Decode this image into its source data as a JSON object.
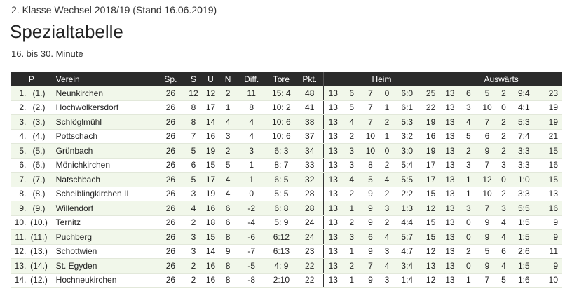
{
  "header": {
    "top_line": "2. Klasse Wechsel 2018/19 (Stand 16.06.2019)",
    "title": "Spezialtabelle",
    "subtitle": "16. bis 30. Minute"
  },
  "columns": {
    "p": "P",
    "verein": "Verein",
    "sp": "Sp.",
    "s": "S",
    "u": "U",
    "n": "N",
    "diff": "Diff.",
    "tore": "Tore",
    "pkt": "Pkt.",
    "heim": "Heim",
    "auswaerts": "Auswärts"
  },
  "rows": [
    {
      "pos": "1.",
      "prev": "(1.)",
      "team": "Neunkirchen",
      "sp": "26",
      "s": "12",
      "u": "12",
      "n": "2",
      "diff": "11",
      "tore": "15: 4",
      "pkt": "48",
      "home": [
        "13",
        "6",
        "7",
        "0",
        "6:0",
        "25"
      ],
      "away": [
        "13",
        "6",
        "5",
        "2",
        "9:4",
        "23"
      ]
    },
    {
      "pos": "2.",
      "prev": "(2.)",
      "team": "Hochwolkersdorf",
      "sp": "26",
      "s": "8",
      "u": "17",
      "n": "1",
      "diff": "8",
      "tore": "10: 2",
      "pkt": "41",
      "home": [
        "13",
        "5",
        "7",
        "1",
        "6:1",
        "22"
      ],
      "away": [
        "13",
        "3",
        "10",
        "0",
        "4:1",
        "19"
      ]
    },
    {
      "pos": "3.",
      "prev": "(3.)",
      "team": "Schlöglmühl",
      "sp": "26",
      "s": "8",
      "u": "14",
      "n": "4",
      "diff": "4",
      "tore": "10: 6",
      "pkt": "38",
      "home": [
        "13",
        "4",
        "7",
        "2",
        "5:3",
        "19"
      ],
      "away": [
        "13",
        "4",
        "7",
        "2",
        "5:3",
        "19"
      ]
    },
    {
      "pos": "4.",
      "prev": "(4.)",
      "team": "Pottschach",
      "sp": "26",
      "s": "7",
      "u": "16",
      "n": "3",
      "diff": "4",
      "tore": "10: 6",
      "pkt": "37",
      "home": [
        "13",
        "2",
        "10",
        "1",
        "3:2",
        "16"
      ],
      "away": [
        "13",
        "5",
        "6",
        "2",
        "7:4",
        "21"
      ]
    },
    {
      "pos": "5.",
      "prev": "(5.)",
      "team": "Grünbach",
      "sp": "26",
      "s": "5",
      "u": "19",
      "n": "2",
      "diff": "3",
      "tore": "6: 3",
      "pkt": "34",
      "home": [
        "13",
        "3",
        "10",
        "0",
        "3:0",
        "19"
      ],
      "away": [
        "13",
        "2",
        "9",
        "2",
        "3:3",
        "15"
      ]
    },
    {
      "pos": "6.",
      "prev": "(6.)",
      "team": "Mönichkirchen",
      "sp": "26",
      "s": "6",
      "u": "15",
      "n": "5",
      "diff": "1",
      "tore": "8: 7",
      "pkt": "33",
      "home": [
        "13",
        "3",
        "8",
        "2",
        "5:4",
        "17"
      ],
      "away": [
        "13",
        "3",
        "7",
        "3",
        "3:3",
        "16"
      ]
    },
    {
      "pos": "7.",
      "prev": "(7.)",
      "team": "Natschbach",
      "sp": "26",
      "s": "5",
      "u": "17",
      "n": "4",
      "diff": "1",
      "tore": "6: 5",
      "pkt": "32",
      "home": [
        "13",
        "4",
        "5",
        "4",
        "5:5",
        "17"
      ],
      "away": [
        "13",
        "1",
        "12",
        "0",
        "1:0",
        "15"
      ]
    },
    {
      "pos": "8.",
      "prev": "(8.)",
      "team": "Scheiblingkirchen II",
      "sp": "26",
      "s": "3",
      "u": "19",
      "n": "4",
      "diff": "0",
      "tore": "5: 5",
      "pkt": "28",
      "home": [
        "13",
        "2",
        "9",
        "2",
        "2:2",
        "15"
      ],
      "away": [
        "13",
        "1",
        "10",
        "2",
        "3:3",
        "13"
      ]
    },
    {
      "pos": "9.",
      "prev": "(9.)",
      "team": "Willendorf",
      "sp": "26",
      "s": "4",
      "u": "16",
      "n": "6",
      "diff": "-2",
      "tore": "6: 8",
      "pkt": "28",
      "home": [
        "13",
        "1",
        "9",
        "3",
        "1:3",
        "12"
      ],
      "away": [
        "13",
        "3",
        "7",
        "3",
        "5:5",
        "16"
      ]
    },
    {
      "pos": "10.",
      "prev": "(10.)",
      "team": "Ternitz",
      "sp": "26",
      "s": "2",
      "u": "18",
      "n": "6",
      "diff": "-4",
      "tore": "5: 9",
      "pkt": "24",
      "home": [
        "13",
        "2",
        "9",
        "2",
        "4:4",
        "15"
      ],
      "away": [
        "13",
        "0",
        "9",
        "4",
        "1:5",
        "9"
      ]
    },
    {
      "pos": "11.",
      "prev": "(11.)",
      "team": "Puchberg",
      "sp": "26",
      "s": "3",
      "u": "15",
      "n": "8",
      "diff": "-6",
      "tore": "6:12",
      "pkt": "24",
      "home": [
        "13",
        "3",
        "6",
        "4",
        "5:7",
        "15"
      ],
      "away": [
        "13",
        "0",
        "9",
        "4",
        "1:5",
        "9"
      ]
    },
    {
      "pos": "12.",
      "prev": "(13.)",
      "team": "Schottwien",
      "sp": "26",
      "s": "3",
      "u": "14",
      "n": "9",
      "diff": "-7",
      "tore": "6:13",
      "pkt": "23",
      "home": [
        "13",
        "1",
        "9",
        "3",
        "4:7",
        "12"
      ],
      "away": [
        "13",
        "2",
        "5",
        "6",
        "2:6",
        "11"
      ]
    },
    {
      "pos": "13.",
      "prev": "(14.)",
      "team": "St. Egyden",
      "sp": "26",
      "s": "2",
      "u": "16",
      "n": "8",
      "diff": "-5",
      "tore": "4: 9",
      "pkt": "22",
      "home": [
        "13",
        "2",
        "7",
        "4",
        "3:4",
        "13"
      ],
      "away": [
        "13",
        "0",
        "9",
        "4",
        "1:5",
        "9"
      ]
    },
    {
      "pos": "14.",
      "prev": "(12.)",
      "team": "Hochneukirchen",
      "sp": "26",
      "s": "2",
      "u": "16",
      "n": "8",
      "diff": "-8",
      "tore": "2:10",
      "pkt": "22",
      "home": [
        "13",
        "1",
        "9",
        "3",
        "1:4",
        "12"
      ],
      "away": [
        "13",
        "1",
        "7",
        "5",
        "1:6",
        "10"
      ]
    }
  ]
}
